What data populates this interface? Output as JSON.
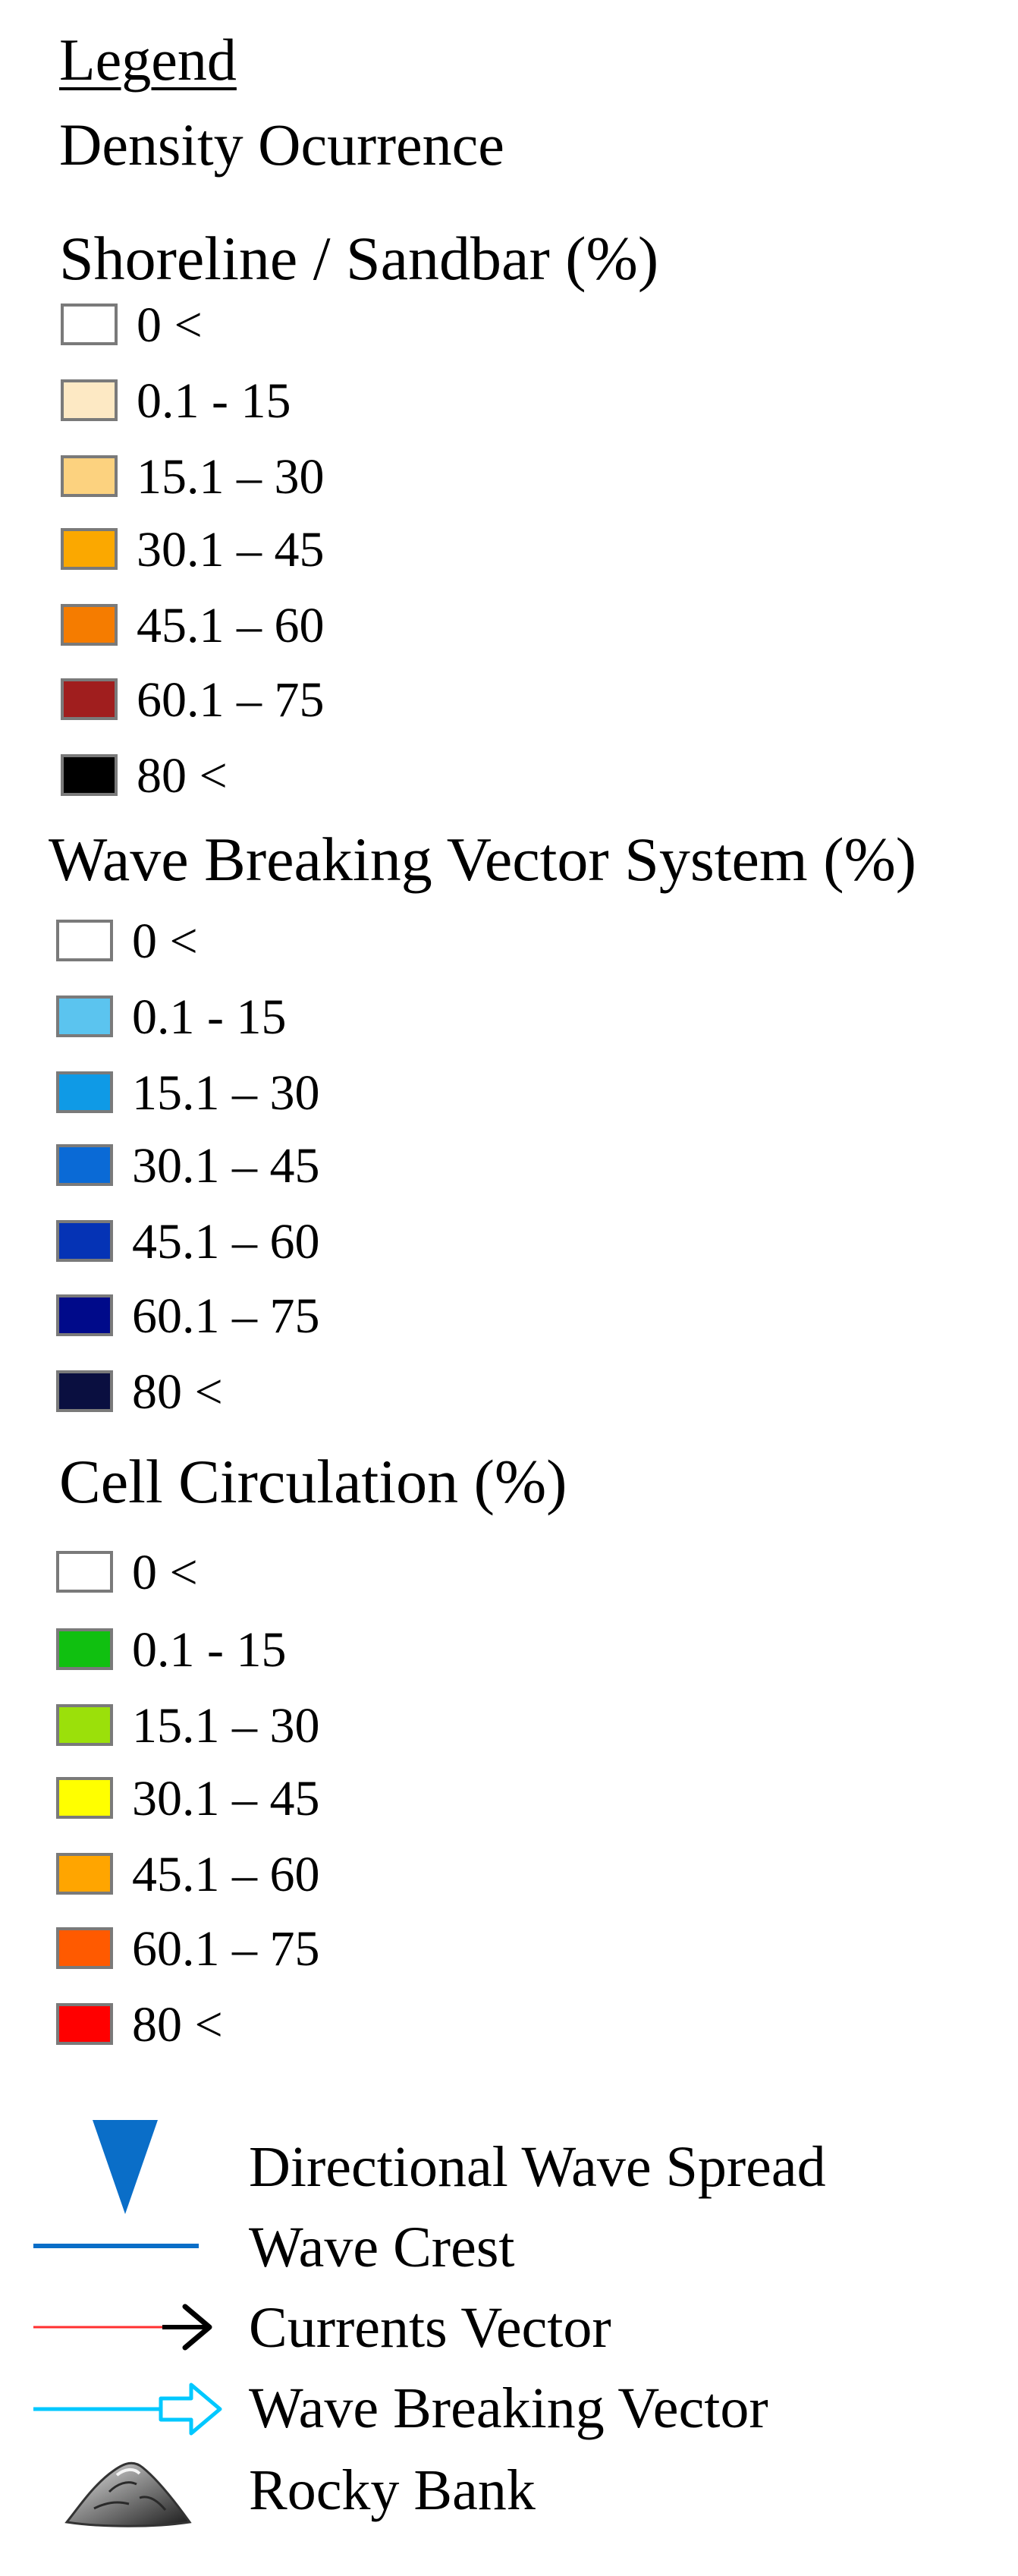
{
  "legend": {
    "title": "Legend",
    "subtitle": "Density Ocurrence"
  },
  "sections": [
    {
      "title": "Shoreline / Sandbar (%)",
      "items": [
        {
          "label": "0 <",
          "color": "#ffffff"
        },
        {
          "label": "0.1 -  15",
          "color": "#fde9c4"
        },
        {
          "label": "15.1 – 30",
          "color": "#fcd27f"
        },
        {
          "label": "30.1 – 45",
          "color": "#fba800"
        },
        {
          "label": "45.1 – 60",
          "color": "#f57c00"
        },
        {
          "label": "60.1 – 75",
          "color": "#a01e1e"
        },
        {
          "label": "80  <",
          "color": "#000000"
        }
      ]
    },
    {
      "title": "Wave Breaking Vector System (%)",
      "items": [
        {
          "label": "0 <",
          "color": "#ffffff"
        },
        {
          "label": "0.1 -  15",
          "color": "#5bc4ef"
        },
        {
          "label": "15.1 – 30",
          "color": "#0f9ae6"
        },
        {
          "label": "30.1 – 45",
          "color": "#0a6ad6"
        },
        {
          "label": "45.1 – 60",
          "color": "#0533b5"
        },
        {
          "label": "60.1 – 75",
          "color": "#000a8a"
        },
        {
          "label": "80  <",
          "color": "#0a0f40"
        }
      ]
    },
    {
      "title": "Cell Circulation (%)",
      "items": [
        {
          "label": "0 <",
          "color": "#ffffff"
        },
        {
          "label": "0.1 -  15",
          "color": "#10c010"
        },
        {
          "label": "15.1 – 30",
          "color": "#9be00a"
        },
        {
          "label": "30.1 – 45",
          "color": "#ffff00"
        },
        {
          "label": "45.1 – 60",
          "color": "#ffa500"
        },
        {
          "label": "60.1 – 75",
          "color": "#ff5a00"
        },
        {
          "label": "80  <",
          "color": "#ff0000"
        }
      ]
    }
  ],
  "symbols": [
    {
      "label": "Directional Wave Spread",
      "icon": "triangle-down-icon",
      "color": "#0a6ec8"
    },
    {
      "label": "Wave Crest",
      "icon": "line-icon",
      "color": "#0a6ec8"
    },
    {
      "label": "Currents Vector",
      "icon": "arrow-icon",
      "color": "#ff3030"
    },
    {
      "label": "Wave Breaking Vector",
      "icon": "hollow-arrow-icon",
      "color": "#00c8ff"
    },
    {
      "label": "Rocky Bank",
      "icon": "rocky-bank-icon",
      "color": "#444444"
    }
  ]
}
